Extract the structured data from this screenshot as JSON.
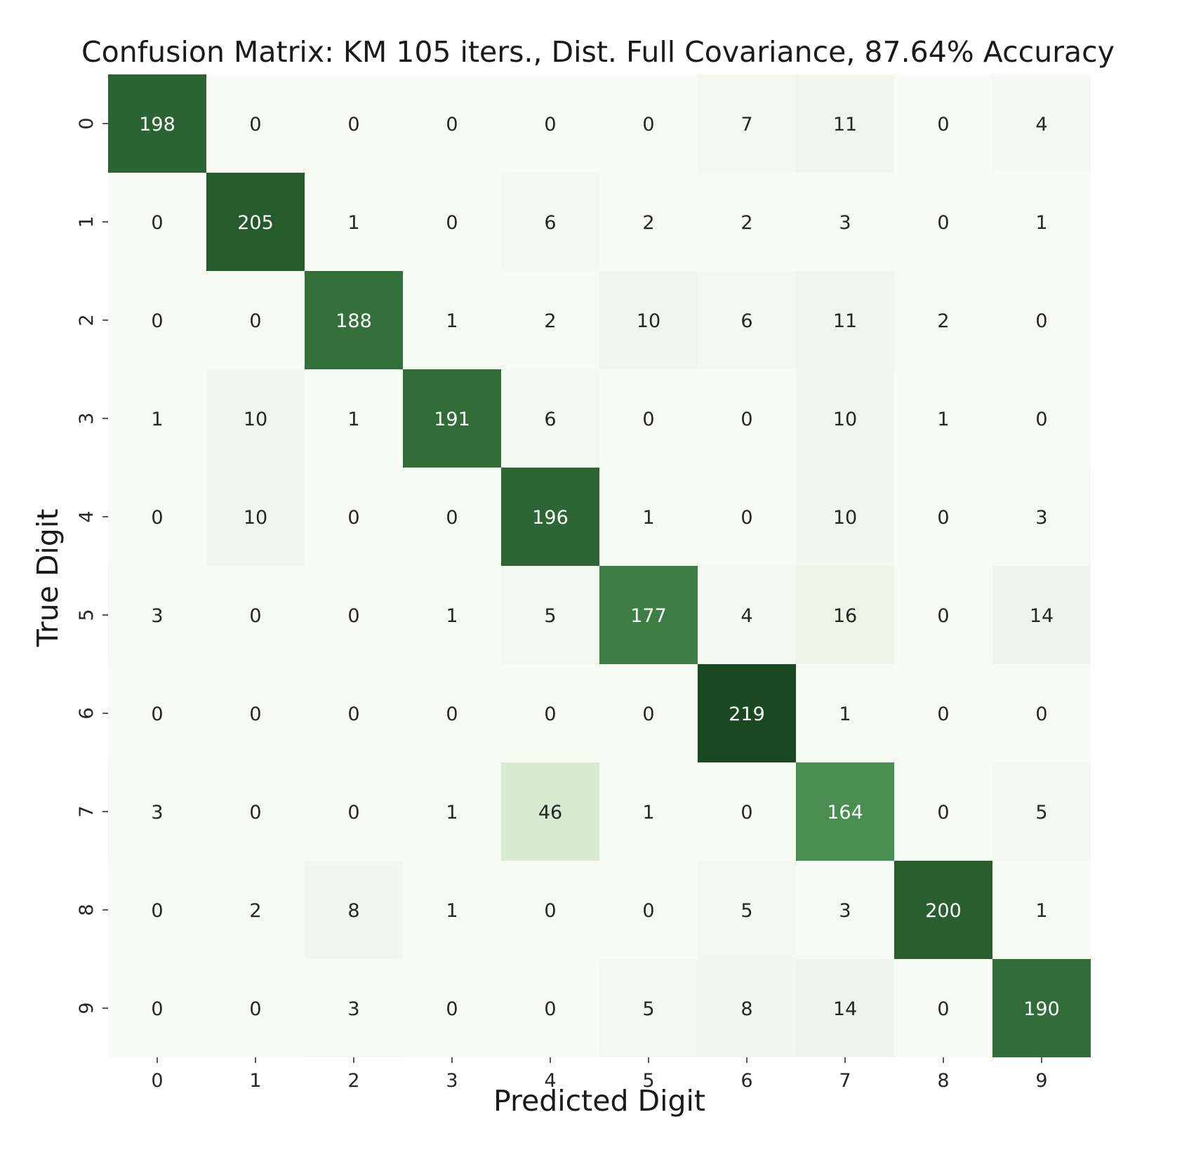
{
  "chart_data": {
    "type": "heatmap",
    "title": "Confusion Matrix: KM 105 iters., Dist. Full Covariance, 87.64% Accuracy",
    "xlabel": "Predicted Digit",
    "ylabel": "True Digit",
    "x_categories": [
      "0",
      "1",
      "2",
      "3",
      "4",
      "5",
      "6",
      "7",
      "8",
      "9"
    ],
    "y_categories": [
      "0",
      "1",
      "2",
      "3",
      "4",
      "5",
      "6",
      "7",
      "8",
      "9"
    ],
    "values": [
      [
        198,
        0,
        0,
        0,
        0,
        0,
        7,
        11,
        0,
        4
      ],
      [
        0,
        205,
        1,
        0,
        6,
        2,
        2,
        3,
        0,
        1
      ],
      [
        0,
        0,
        188,
        1,
        2,
        10,
        6,
        11,
        2,
        0
      ],
      [
        1,
        10,
        1,
        191,
        6,
        0,
        0,
        10,
        1,
        0
      ],
      [
        0,
        10,
        0,
        0,
        196,
        1,
        0,
        10,
        0,
        3
      ],
      [
        3,
        0,
        0,
        1,
        5,
        177,
        4,
        16,
        0,
        14
      ],
      [
        0,
        0,
        0,
        0,
        0,
        0,
        219,
        1,
        0,
        0
      ],
      [
        3,
        0,
        0,
        1,
        46,
        1,
        0,
        164,
        0,
        5
      ],
      [
        0,
        2,
        8,
        1,
        0,
        0,
        5,
        3,
        200,
        1
      ],
      [
        0,
        0,
        3,
        0,
        0,
        5,
        8,
        14,
        0,
        190
      ]
    ],
    "colormap": "Greens",
    "color_low": "#f7fcf5",
    "color_high": "#1a4a20",
    "legend": "none",
    "grid": false
  }
}
